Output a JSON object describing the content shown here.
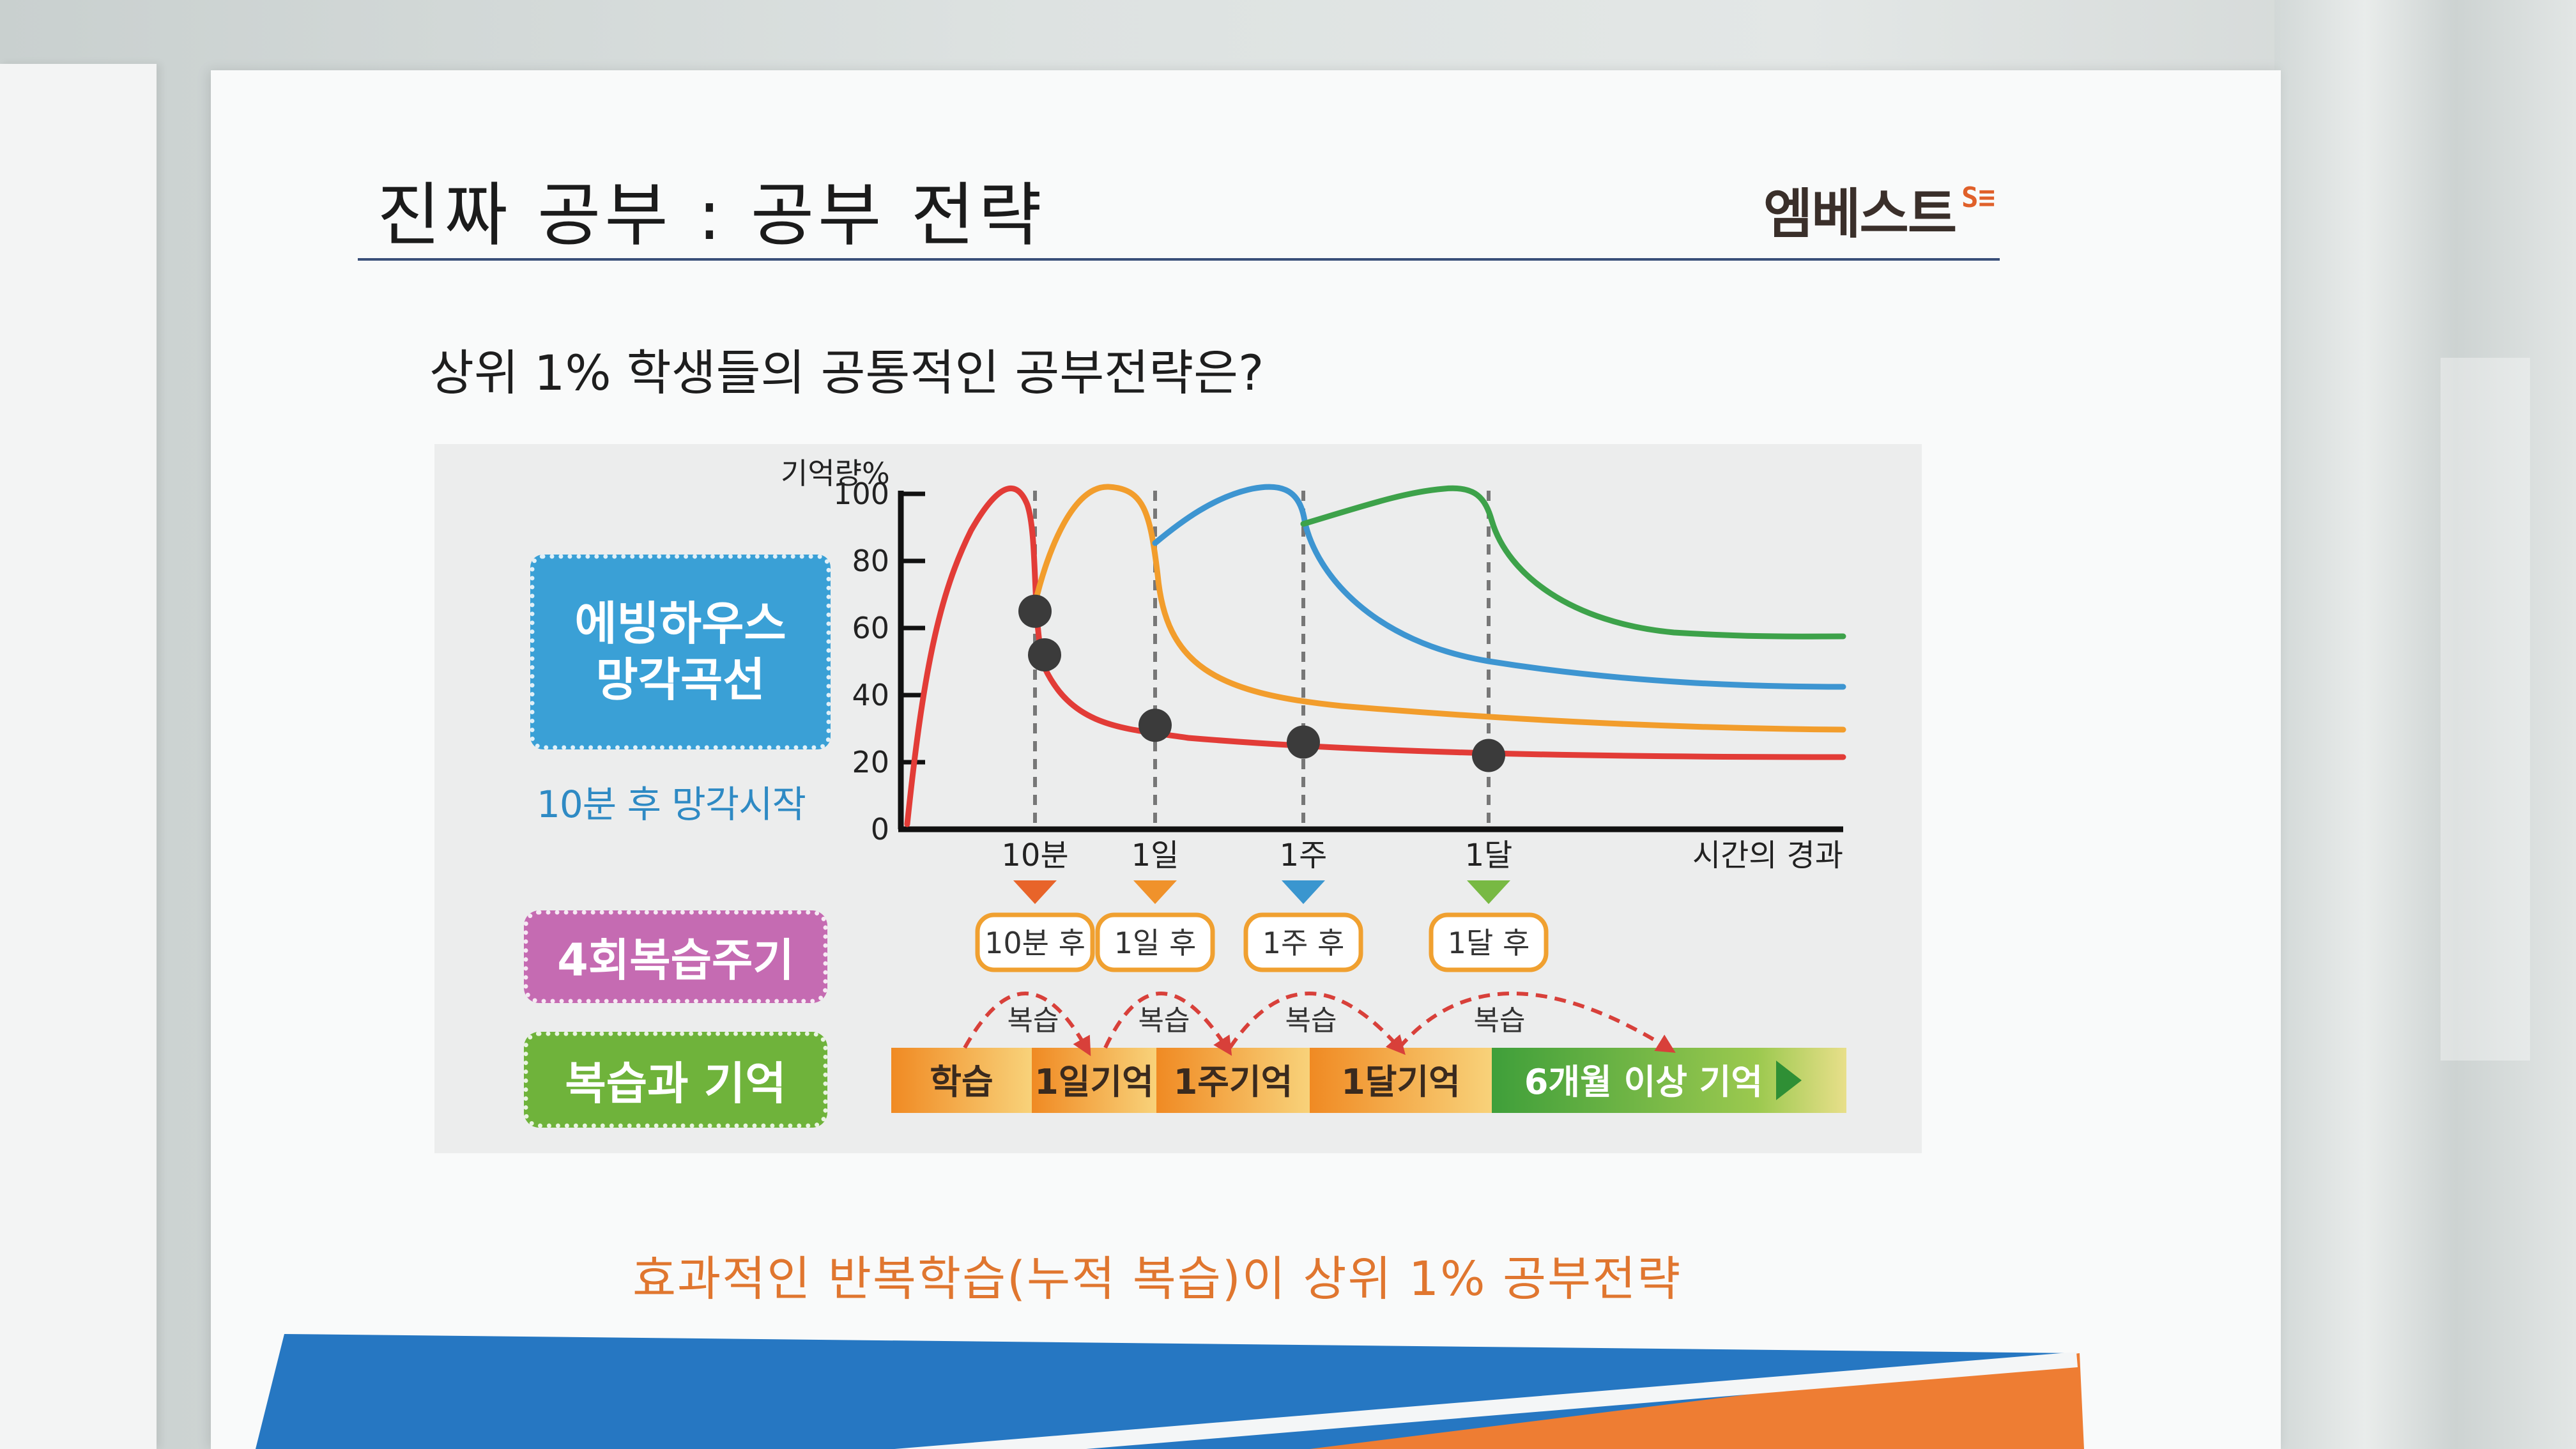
{
  "header": {
    "title": "진짜 공부 : 공부 전략",
    "logo_text": "엠베스트",
    "logo_mark": "S≡"
  },
  "question": "상위 1% 학생들의 공통적인 공부전략은?",
  "left_labels": {
    "ebbinghaus_line1": "에빙하우스",
    "ebbinghaus_line2": "망각곡선",
    "forget_start": "10분 후 망각시작",
    "review_cycle": "4회복습주기",
    "review_memory": "복습과 기억"
  },
  "chart_data": {
    "type": "line",
    "ylabel": "기억량%",
    "xlabel": "시간의 경과",
    "y_ticks": [
      "100",
      "80",
      "60",
      "40",
      "20",
      "0"
    ],
    "ylim": [
      0,
      100
    ],
    "x_ticks": [
      "10분",
      "1일",
      "1주",
      "1달"
    ],
    "review_markers": [
      {
        "label": "10분 후",
        "color": "#e8642a"
      },
      {
        "label": "1일 후",
        "color": "#f0922b"
      },
      {
        "label": "1주 후",
        "color": "#3a96cf"
      },
      {
        "label": "1달 후",
        "color": "#78b943"
      }
    ],
    "series_colors": [
      "#e23c37",
      "#f29d2c",
      "#3d95d1",
      "#3da24a"
    ],
    "points_y": [
      65,
      52,
      31,
      26,
      22
    ]
  },
  "timeline": {
    "review_label": "복습",
    "segments": [
      "학습",
      "1일기억",
      "1주기억",
      "1달기억",
      "6개월 이상 기억"
    ]
  },
  "bottom_note": "효과적인 반복학습(누적 복습)이 상위 1% 공부전략"
}
